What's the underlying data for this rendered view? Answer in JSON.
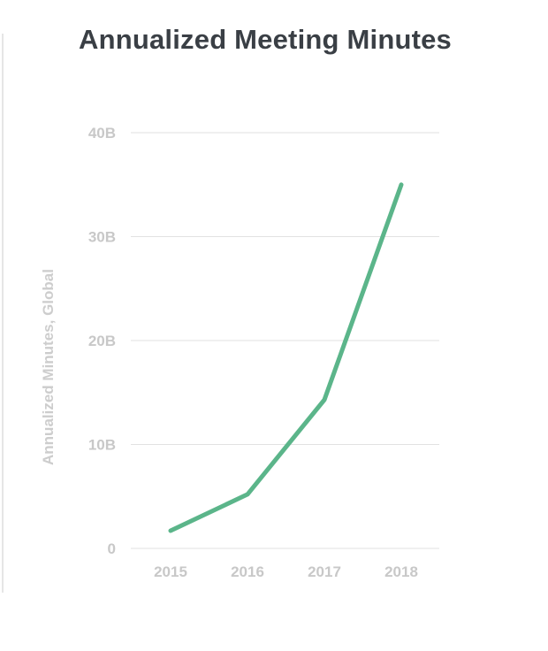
{
  "colors": {
    "line": "#5bb58a",
    "grid": "#e2e2e2",
    "tick": "#c8c8c8",
    "title": "#3a3f45"
  },
  "chart_data": {
    "type": "line",
    "title": "Annualized Meeting Minutes",
    "xlabel": "",
    "ylabel": "Annualized Minutes, Global",
    "categories": [
      "2015",
      "2016",
      "2017",
      "2018"
    ],
    "series": [
      {
        "values": [
          1700000000,
          5200000000,
          14300000000,
          35000000000
        ]
      }
    ],
    "ylim": [
      0,
      40000000000
    ],
    "y_ticks": [
      {
        "value": 0,
        "label": "0"
      },
      {
        "value": 10000000000,
        "label": "10B"
      },
      {
        "value": 20000000000,
        "label": "20B"
      },
      {
        "value": 30000000000,
        "label": "30B"
      },
      {
        "value": 40000000000,
        "label": "40B"
      }
    ],
    "grid": true,
    "legend": "none"
  }
}
